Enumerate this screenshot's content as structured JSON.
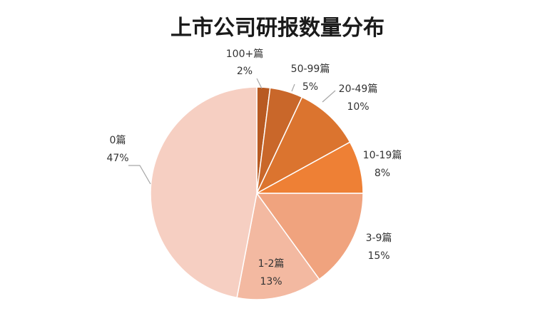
{
  "chart_data": {
    "type": "pie",
    "title": "上市公司研报数量分布",
    "slices": [
      {
        "category": "100+篇",
        "percent": "2%",
        "value": 2,
        "color": "#b85a22"
      },
      {
        "category": "50-99篇",
        "percent": "5%",
        "value": 5,
        "color": "#c9672a"
      },
      {
        "category": "20-49篇",
        "percent": "10%",
        "value": 10,
        "color": "#db742f"
      },
      {
        "category": "10-19篇",
        "percent": "8%",
        "value": 8,
        "color": "#ee8035"
      },
      {
        "category": "3-9篇",
        "percent": "15%",
        "value": 15,
        "color": "#f0a37e"
      },
      {
        "category": "1-2篇",
        "percent": "13%",
        "value": 13,
        "color": "#f3b9a1"
      },
      {
        "category": "0篇",
        "percent": "47%",
        "value": 47,
        "color": "#f6cfc2"
      }
    ]
  }
}
